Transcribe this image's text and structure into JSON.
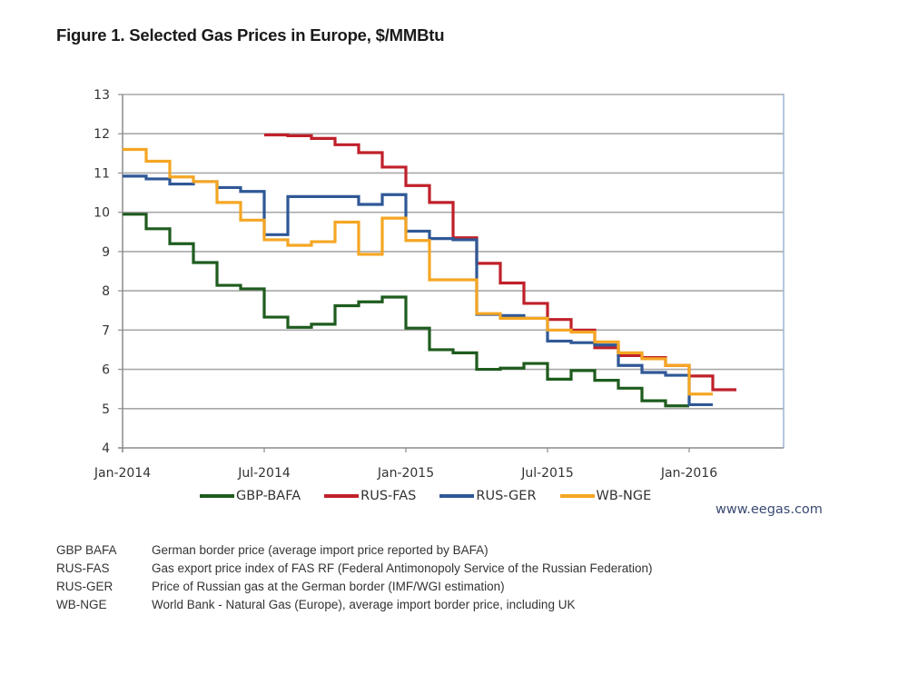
{
  "title": "Figure 1. Selected Gas Prices in Europe, $/MMBtu",
  "source": "www.eegas.com",
  "chart_data": {
    "type": "line",
    "step": true,
    "title": "Figure 1. Selected Gas Prices in Europe, $/MMBtu",
    "xlabel": "",
    "ylabel": "$/MMBtu",
    "ylim": [
      4,
      13
    ],
    "yticks": [
      4,
      5,
      6,
      7,
      8,
      9,
      10,
      11,
      12,
      13
    ],
    "xrange_months": [
      0,
      28
    ],
    "xticks": [
      {
        "month": 0,
        "label": "Jan-2014"
      },
      {
        "month": 6,
        "label": "Jul-2014"
      },
      {
        "month": 12,
        "label": "Jan-2015"
      },
      {
        "month": 18,
        "label": "Jul-2015"
      },
      {
        "month": 24,
        "label": "Jan-2016"
      }
    ],
    "grid": "horizontal",
    "legend_position": "bottom",
    "series": [
      {
        "name": "GBP-BAFA",
        "color": "#1e5c1e",
        "start_month": 0,
        "values": [
          9.95,
          9.58,
          9.2,
          8.72,
          8.14,
          8.05,
          7.33,
          7.07,
          7.15,
          7.62,
          7.72,
          7.84,
          7.05,
          6.5,
          6.42,
          6.0,
          6.03,
          6.15,
          5.75,
          5.97,
          5.72,
          5.52,
          5.2,
          5.07
        ]
      },
      {
        "name": "RUS-FAS",
        "color": "#c0202a",
        "start_month": 6,
        "values": [
          11.97,
          11.95,
          11.88,
          11.72,
          11.52,
          11.15,
          10.68,
          10.25,
          9.35,
          8.7,
          8.2,
          7.68,
          7.27,
          7.0,
          6.55,
          6.35,
          6.3,
          6.1,
          5.83,
          5.48
        ]
      },
      {
        "name": "RUS-GER",
        "color": "#2f5896",
        "start_month": 0,
        "values": [
          10.92,
          10.85,
          10.72,
          10.78,
          10.63,
          10.53,
          9.43,
          10.4,
          10.4,
          10.4,
          10.2,
          10.45,
          9.52,
          9.33,
          9.3,
          7.4,
          7.37,
          7.3,
          6.72,
          6.68,
          6.62,
          6.1,
          5.92,
          5.85,
          5.1
        ]
      },
      {
        "name": "WB-NGE",
        "color": "#f5a623",
        "start_month": 0,
        "values": [
          11.6,
          11.3,
          10.9,
          10.78,
          10.25,
          9.8,
          9.3,
          9.16,
          9.25,
          9.75,
          8.93,
          9.85,
          9.28,
          8.28,
          8.28,
          7.42,
          7.3,
          7.3,
          7.0,
          6.95,
          6.7,
          6.42,
          6.27,
          6.1,
          5.37
        ]
      }
    ]
  },
  "legend": [
    {
      "label": "GBP-BAFA",
      "color": "#1e5c1e"
    },
    {
      "label": "RUS-FAS",
      "color": "#c0202a"
    },
    {
      "label": "RUS-GER",
      "color": "#2f5896"
    },
    {
      "label": "WB-NGE",
      "color": "#f5a623"
    }
  ],
  "notes": [
    {
      "key": "GBP BAFA",
      "text": "German border price (average import price reported by BAFA)"
    },
    {
      "key": "RUS-FAS",
      "text": "Gas export price index of FAS RF (Federal Antimonopoly Service of the Russian Federation)"
    },
    {
      "key": "RUS-GER",
      "text": "Price of Russian gas at the German border (IMF/WGI estimation)"
    },
    {
      "key": "WB-NGE",
      "text": "World Bank - Natural Gas (Europe), average import border price, including UK"
    }
  ]
}
